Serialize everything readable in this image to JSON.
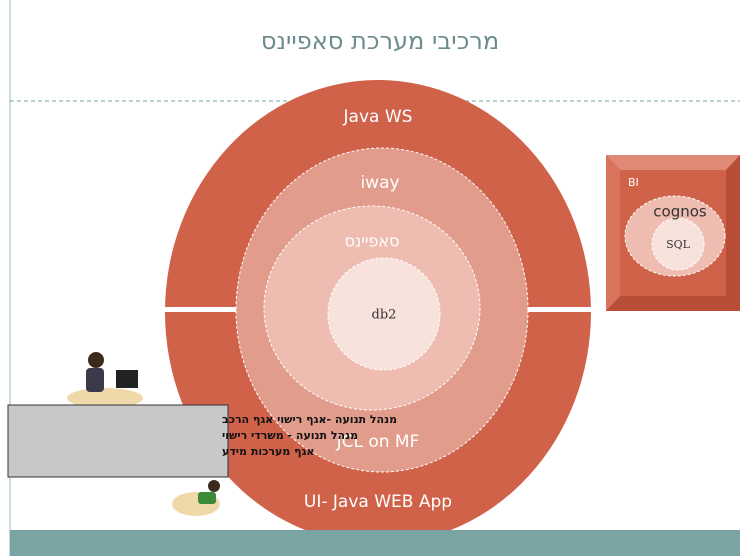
{
  "title": "מרכיבי מערכת סאפיינס",
  "rings": [
    "Java WS",
    "iway",
    "סאפיינס",
    "db2"
  ],
  "bottom_labels": [
    "JCL on MF",
    "UI- Java WEB App"
  ],
  "side_box": {
    "title": "BI",
    "outer": "cognos",
    "inner": "SQL"
  },
  "user_box": {
    "lines": [
      "מנהל תנועה -אגף רישוי אגף הרכב",
      "מנהל תנועה - משרדי רישוי",
      "אגף מערכות מידע"
    ]
  }
}
